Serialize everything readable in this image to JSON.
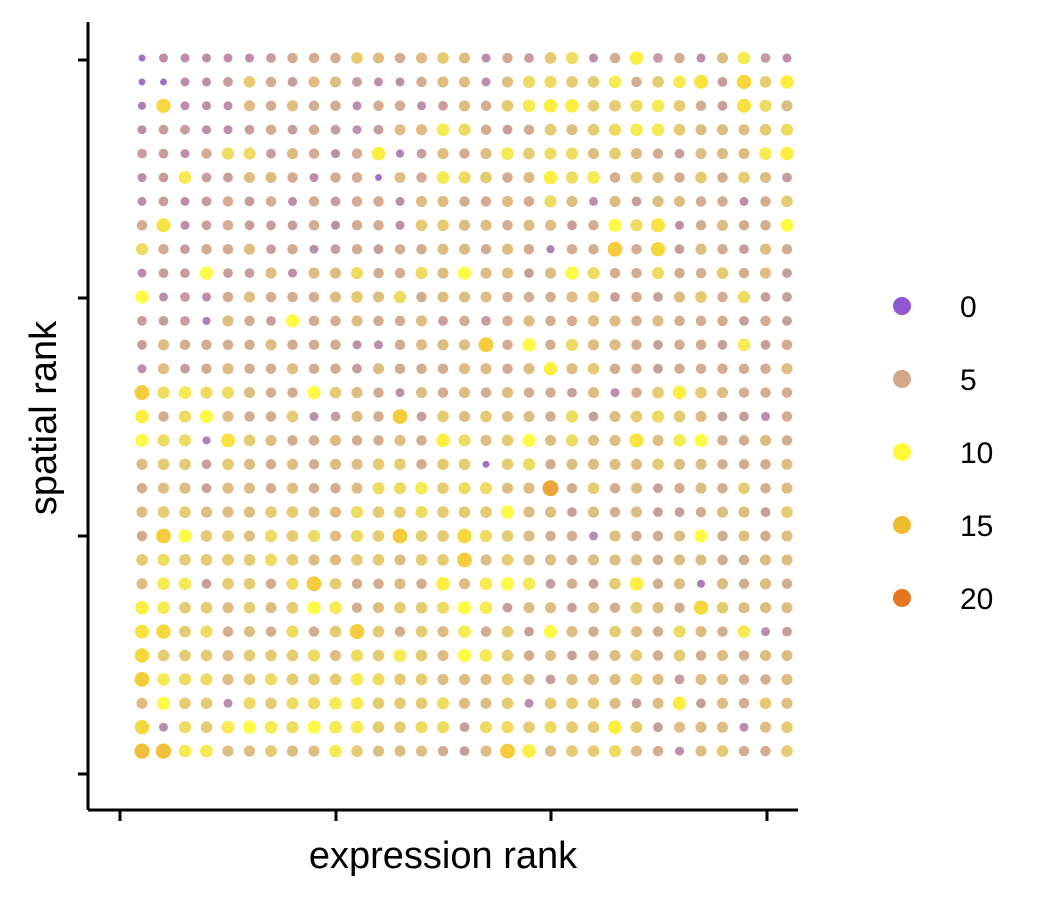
{
  "chart_data": {
    "type": "scatter",
    "title": "",
    "xlabel": "expression rank",
    "ylabel": "spatial rank",
    "grid": false,
    "axis_tick_labels": false,
    "grid_size": {
      "columns": 31,
      "rows": 30
    },
    "legend": {
      "position": "right",
      "entries": [
        {
          "label": "0",
          "value": 0,
          "color": "#9057d0"
        },
        {
          "label": "5",
          "value": 5,
          "color": "#d2a88a"
        },
        {
          "label": "10",
          "value": 10,
          "color": "#fffb3a"
        },
        {
          "label": "15",
          "value": 15,
          "color": "#f0bc2f"
        },
        {
          "label": "20",
          "value": 20,
          "color": "#e67522"
        }
      ]
    },
    "color_scale": {
      "stops": [
        {
          "value": 0,
          "color": "#9057d0"
        },
        {
          "value": 5,
          "color": "#d2a88a"
        },
        {
          "value": 10,
          "color": "#fffb3a"
        },
        {
          "value": 15,
          "color": "#f0bc2f"
        },
        {
          "value": 20,
          "color": "#e67522"
        }
      ]
    },
    "rows": [
      "1,3,3,3,3,3,4,5,5,5,7,6,5,6,7,6,3,5,4,7,8,3,5,11,4,5,3,6,9,4,3",
      "1,1,3,3,4,7,5,4,6,6,4,3,3,5,6,6,3,6,8,8,7,7,9,5,7,9,12,4,13,7,11",
      "2,13,3,3,3,6,5,6,5,5,3,5,5,3,4,6,5,7,9,11,11,7,7,8,9,7,5,4,12,8,6",
      "3,4,4,3,3,4,5,4,5,4,3,4,6,6,9,8,5,4,5,7,6,7,8,9,9,7,6,6,6,7,8",
      "4,4,3,5,8,8,4,6,5,3,5,11,2,4,6,5,6,9,7,8,8,6,7,6,5,4,6,6,6,9,11",
      "3,4,9,4,4,6,6,5,3,5,5,1,6,5,9,8,7,5,6,11,8,9,5,7,6,5,7,5,7,6,4",
      "3,4,3,4,5,4,5,3,5,4,5,5,3,6,6,5,5,6,5,8,6,3,6,4,6,6,5,5,3,5,7",
      "5,12,3,4,5,4,4,4,5,3,5,5,3,7,7,6,6,5,6,6,4,5,10,8,12,3,5,6,5,5,10",
      "8,5,4,5,5,6,4,5,3,4,5,4,5,5,6,6,5,6,5,2,5,5,14,5,13,4,6,5,4,6,5",
      "3,4,4,10,4,4,6,3,6,6,8,5,5,8,6,10,6,6,4,6,10,8,5,5,8,5,5,7,5,6,4",
      "10,3,4,3,5,6,5,5,5,6,7,6,8,5,6,6,6,5,5,5,6,7,4,5,4,6,7,5,8,4,4",
      "4,4,4,2,6,5,4,10,5,5,6,5,5,6,4,5,4,5,6,5,5,6,6,5,6,5,5,5,4,5,4",
      "4,6,5,5,5,5,6,5,5,5,3,3,5,6,6,6,14,5,10,5,8,6,6,5,4,5,5,4,9,4,5",
      "3,6,4,5,6,5,5,6,5,5,4,6,5,5,5,6,6,5,6,11,6,7,5,5,4,5,5,5,5,5,6",
      "14,8,9,8,8,6,5,5,10,7,6,5,3,6,5,6,5,6,5,5,4,6,3,5,7,11,7,6,5,5,5",
      "11,5,8,10,6,5,5,7,3,4,6,5,14,4,7,6,7,6,6,5,8,4,6,7,8,7,6,4,4,3,5",
      "10,8,8,2,12,7,6,5,5,6,5,5,6,5,11,8,6,7,10,6,8,6,6,12,6,9,10,5,5,6,5",
      "6,7,7,4,7,6,5,6,5,6,6,7,7,5,7,7,1,7,8,5,6,6,6,6,7,6,6,5,5,5,6",
      "5,6,6,4,6,6,5,6,5,5,6,8,8,9,7,8,8,6,6,17,5,7,5,6,4,5,6,5,7,5,6",
      "6,7,7,6,6,6,7,7,6,6,8,7,7,8,7,7,7,10,6,6,4,6,5,6,4,4,5,6,6,4,7",
      "5,14,10,7,7,6,8,7,8,6,8,7,14,7,7,13,8,7,6,5,5,3,6,5,5,6,10,5,6,5,6",
      "7,8,7,7,7,7,8,7,6,6,7,7,6,7,7,14,6,7,6,6,5,6,6,6,5,6,6,5,5,6,6",
      "6,9,9,4,7,7,5,8,14,7,5,5,6,5,11,6,9,10,9,4,5,4,7,11,5,6,2,6,5,6,5",
      "11,9,7,7,6,7,6,7,10,9,5,6,7,7,8,10,9,4,6,6,4,6,5,7,6,5,13,7,6,6,6",
      "12,13,7,8,5,6,5,8,5,7,14,7,5,7,6,9,5,7,4,10,6,5,7,6,5,8,6,5,9,3,4",
      "13,7,7,7,6,7,7,7,8,6,8,7,9,7,6,10,9,7,5,6,4,5,6,7,5,7,5,6,5,6,6",
      "14,9,8,8,6,7,8,7,7,7,9,8,7,7,6,6,6,7,6,4,6,6,6,7,6,4,6,6,5,5,6",
      "6,10,7,7,3,8,7,8,8,9,9,7,7,7,8,6,6,7,3,7,7,7,6,4,6,11,4,6,5,7,6",
      "13,3,8,7,9,10,9,8,10,9,9,7,7,8,8,4,8,8,7,8,7,7,11,7,4,6,6,6,3,6,7",
      "15,15,9,9,6,6,7,6,6,9,7,6,6,6,5,4,6,14,11,6,7,7,8,6,5,3,6,7,5,5,7"
    ]
  }
}
